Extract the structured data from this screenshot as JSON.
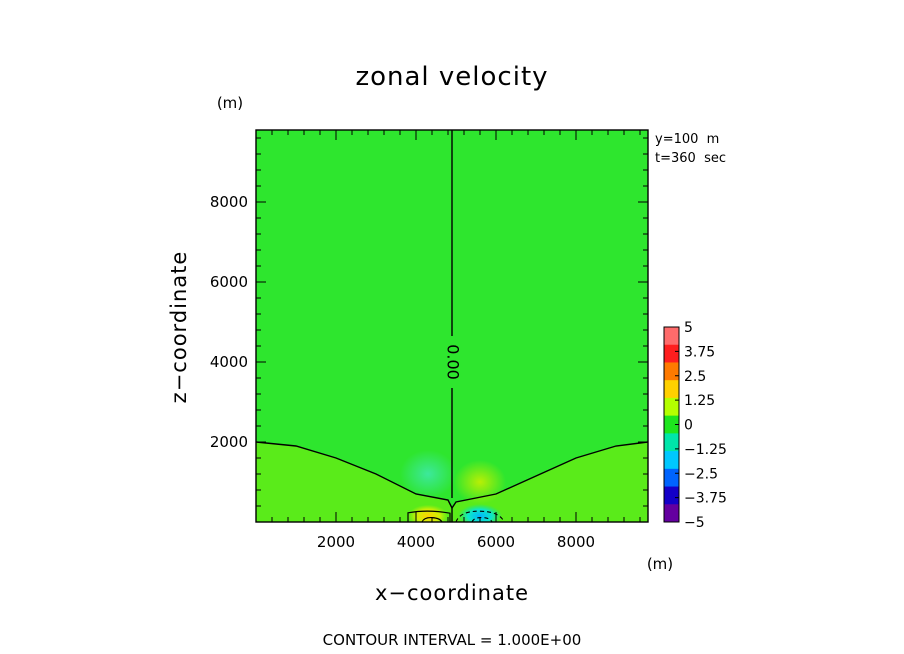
{
  "chart_data": {
    "type": "heatmap",
    "title": "zonal velocity",
    "xlabel": "x−coordinate",
    "ylabel": "z−coordinate",
    "x_unit": "(m)",
    "y_unit": "(m)",
    "xlim": [
      0,
      9800
    ],
    "ylim": [
      0,
      9800
    ],
    "x_ticks": [
      2000,
      4000,
      6000,
      8000
    ],
    "x_tick_labels": [
      "2000",
      "4000",
      "6000",
      "8000"
    ],
    "y_ticks": [
      2000,
      4000,
      6000,
      8000
    ],
    "y_tick_labels": [
      "2000",
      "4000",
      "6000",
      "8000"
    ],
    "annotations": [
      "y=100  m",
      "t=360  sec"
    ],
    "footer": "CONTOUR INTERVAL = 1.000E+00",
    "contour_label": "0.00",
    "colorbar": {
      "range": [
        -5,
        5
      ],
      "tick_values": [
        5,
        3.75,
        2.5,
        1.25,
        0,
        -1.25,
        -2.5,
        -3.75,
        -5
      ],
      "tick_labels": [
        "5",
        "3.75",
        "2.5",
        "1.25",
        "0",
        "−1.25",
        "−2.5",
        "−3.75",
        "−5"
      ],
      "colors": [
        "#ff6b6b",
        "#ff1e1e",
        "#ff7a00",
        "#ffd000",
        "#b4ff00",
        "#1ee61e",
        "#00e6aa",
        "#00c8ff",
        "#0064ff",
        "#1400c8",
        "#6400a0"
      ]
    },
    "zero_contour": [
      [
        0,
        2000
      ],
      [
        1000,
        1900
      ],
      [
        2000,
        1600
      ],
      [
        3000,
        1200
      ],
      [
        4000,
        700
      ],
      [
        4800,
        550
      ],
      [
        4900,
        350
      ],
      [
        5000,
        500
      ],
      [
        6000,
        700
      ],
      [
        7000,
        1150
      ],
      [
        8000,
        1600
      ],
      [
        9000,
        1900
      ],
      [
        9800,
        2000
      ]
    ],
    "center_line_x": 4900,
    "features": [
      {
        "x": 4300,
        "z": 1200,
        "value": -0.6,
        "rx": 700,
        "rz": 600
      },
      {
        "x": 5600,
        "z": 1000,
        "value": 0.5,
        "rx": 650,
        "rz": 550
      },
      {
        "x": 4300,
        "z": 150,
        "value": 2.5,
        "rx": 500,
        "rz": 280
      },
      {
        "x": 5600,
        "z": 150,
        "value": -2.0,
        "rx": 550,
        "rz": 300
      }
    ]
  }
}
